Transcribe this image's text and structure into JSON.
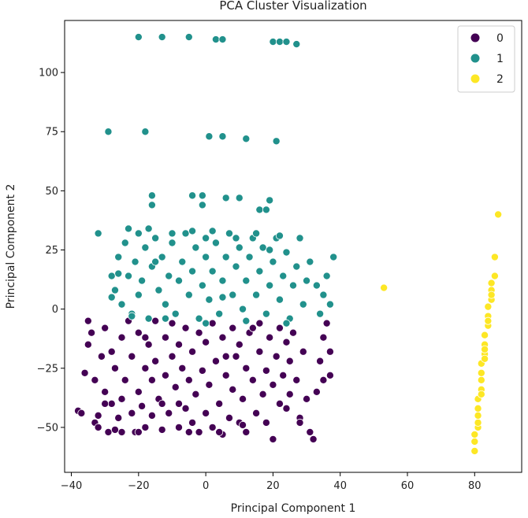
{
  "chart_data": {
    "type": "scatter",
    "title": "PCA Cluster Visualization",
    "xlabel": "Principal Component 1",
    "ylabel": "Principal Component 2",
    "xlim": [
      -42,
      94
    ],
    "ylim": [
      -69,
      122
    ],
    "xticks": [
      -40,
      -20,
      0,
      20,
      40,
      60,
      80
    ],
    "yticks": [
      -50,
      -25,
      0,
      25,
      50,
      75,
      100
    ],
    "xtick_labels": [
      "−40",
      "−20",
      "0",
      "20",
      "40",
      "60",
      "80"
    ],
    "ytick_labels": [
      "−50",
      "−25",
      "0",
      "25",
      "50",
      "75",
      "100"
    ],
    "grid": false,
    "legend_position": "top-right",
    "series": [
      {
        "name": "0",
        "color": "#440154",
        "points": [
          [
            -38,
            -43
          ],
          [
            -37,
            -44
          ],
          [
            -36,
            -27
          ],
          [
            -35,
            -5
          ],
          [
            -35,
            -15
          ],
          [
            -34,
            -10
          ],
          [
            -33,
            -30
          ],
          [
            -33,
            -48
          ],
          [
            -32,
            -50
          ],
          [
            -32,
            -45
          ],
          [
            -31,
            -20
          ],
          [
            -30,
            -35
          ],
          [
            -30,
            -8
          ],
          [
            -29,
            -52
          ],
          [
            -28,
            -18
          ],
          [
            -28,
            -40
          ],
          [
            -27,
            -25
          ],
          [
            -26,
            -46
          ],
          [
            -25,
            -12
          ],
          [
            -25,
            -52
          ],
          [
            -24,
            -30
          ],
          [
            -23,
            -5
          ],
          [
            -22,
            -44
          ],
          [
            -22,
            -20
          ],
          [
            -21,
            -52
          ],
          [
            -20,
            -35
          ],
          [
            -20,
            -10
          ],
          [
            -19,
            -41
          ],
          [
            -18,
            -25
          ],
          [
            -18,
            -50
          ],
          [
            -17,
            -15
          ],
          [
            -16,
            -30
          ],
          [
            -16,
            -45
          ],
          [
            -15,
            -5
          ],
          [
            -15,
            -22
          ],
          [
            -14,
            -38
          ],
          [
            -13,
            -51
          ],
          [
            -12,
            -12
          ],
          [
            -12,
            -28
          ],
          [
            -11,
            -44
          ],
          [
            -10,
            -6
          ],
          [
            -10,
            -20
          ],
          [
            -9,
            -33
          ],
          [
            -8,
            -50
          ],
          [
            -8,
            -15
          ],
          [
            -7,
            -25
          ],
          [
            -6,
            -42
          ],
          [
            -6,
            -8
          ],
          [
            -5,
            -30
          ],
          [
            -4,
            -48
          ],
          [
            -4,
            -18
          ],
          [
            -3,
            -36
          ],
          [
            -2,
            -10
          ],
          [
            -2,
            -52
          ],
          [
            -1,
            -26
          ],
          [
            0,
            -44
          ],
          [
            0,
            -14
          ],
          [
            1,
            -32
          ],
          [
            2,
            -6
          ],
          [
            2,
            -50
          ],
          [
            3,
            -22
          ],
          [
            4,
            -40
          ],
          [
            5,
            -12
          ],
          [
            5,
            -53
          ],
          [
            6,
            -28
          ],
          [
            7,
            -46
          ],
          [
            8,
            -8
          ],
          [
            8,
            -34
          ],
          [
            9,
            -20
          ],
          [
            10,
            -48
          ],
          [
            10,
            -15
          ],
          [
            11,
            -38
          ],
          [
            12,
            -25
          ],
          [
            12,
            -52
          ],
          [
            13,
            -10
          ],
          [
            14,
            -30
          ],
          [
            15,
            -44
          ],
          [
            16,
            -18
          ],
          [
            16,
            -6
          ],
          [
            17,
            -36
          ],
          [
            18,
            -26
          ],
          [
            18,
            -48
          ],
          [
            19,
            -12
          ],
          [
            20,
            -32
          ],
          [
            21,
            -20
          ],
          [
            22,
            -40
          ],
          [
            22,
            -8
          ],
          [
            23,
            -28
          ],
          [
            24,
            -14
          ],
          [
            25,
            -36
          ],
          [
            25,
            -22
          ],
          [
            26,
            -10
          ],
          [
            27,
            -30
          ],
          [
            28,
            -46
          ],
          [
            29,
            -18
          ],
          [
            30,
            -38
          ],
          [
            31,
            -52
          ],
          [
            32,
            -55
          ],
          [
            33,
            -35
          ],
          [
            34,
            -22
          ],
          [
            35,
            -12
          ],
          [
            35,
            -30
          ],
          [
            36,
            -6
          ],
          [
            37,
            -18
          ],
          [
            37,
            -28
          ],
          [
            -27,
            -51
          ],
          [
            -20,
            -52
          ],
          [
            -13,
            -40
          ],
          [
            -5,
            -52
          ],
          [
            4,
            -52
          ],
          [
            11,
            -49
          ],
          [
            20,
            -55
          ],
          [
            28,
            -48
          ],
          [
            -30,
            -40
          ],
          [
            -25,
            -38
          ],
          [
            -18,
            -12
          ],
          [
            -8,
            -40
          ],
          [
            6,
            -20
          ],
          [
            14,
            -8
          ],
          [
            24,
            -42
          ]
        ]
      },
      {
        "name": "1",
        "color": "#21918c",
        "points": [
          [
            -20,
            115
          ],
          [
            -13,
            115
          ],
          [
            -5,
            115
          ],
          [
            3,
            114
          ],
          [
            5,
            114
          ],
          [
            20,
            113
          ],
          [
            22,
            113
          ],
          [
            24,
            113
          ],
          [
            27,
            112
          ],
          [
            -29,
            75
          ],
          [
            -18,
            75
          ],
          [
            1,
            73
          ],
          [
            5,
            73
          ],
          [
            12,
            72
          ],
          [
            21,
            71
          ],
          [
            -16,
            48
          ],
          [
            -16,
            44
          ],
          [
            -4,
            48
          ],
          [
            -1,
            48
          ],
          [
            -1,
            44
          ],
          [
            6,
            47
          ],
          [
            10,
            47
          ],
          [
            16,
            42
          ],
          [
            18,
            42
          ],
          [
            19,
            46
          ],
          [
            -32,
            32
          ],
          [
            -28,
            14
          ],
          [
            -27,
            8
          ],
          [
            -26,
            22
          ],
          [
            -25,
            2
          ],
          [
            -24,
            28
          ],
          [
            -23,
            14
          ],
          [
            -22,
            -2
          ],
          [
            -21,
            20
          ],
          [
            -20,
            32
          ],
          [
            -20,
            6
          ],
          [
            -19,
            12
          ],
          [
            -18,
            26
          ],
          [
            -17,
            -4
          ],
          [
            -16,
            18
          ],
          [
            -15,
            30
          ],
          [
            -14,
            8
          ],
          [
            -13,
            22
          ],
          [
            -12,
            2
          ],
          [
            -11,
            14
          ],
          [
            -10,
            28
          ],
          [
            -9,
            -2
          ],
          [
            -8,
            12
          ],
          [
            -7,
            20
          ],
          [
            -6,
            32
          ],
          [
            -5,
            6
          ],
          [
            -4,
            16
          ],
          [
            -3,
            26
          ],
          [
            -2,
            -4
          ],
          [
            -1,
            10
          ],
          [
            0,
            22
          ],
          [
            0,
            30
          ],
          [
            1,
            4
          ],
          [
            2,
            16
          ],
          [
            3,
            28
          ],
          [
            4,
            -2
          ],
          [
            5,
            12
          ],
          [
            6,
            22
          ],
          [
            7,
            32
          ],
          [
            8,
            6
          ],
          [
            9,
            18
          ],
          [
            10,
            26
          ],
          [
            11,
            0
          ],
          [
            12,
            12
          ],
          [
            13,
            22
          ],
          [
            14,
            30
          ],
          [
            15,
            6
          ],
          [
            16,
            16
          ],
          [
            17,
            26
          ],
          [
            18,
            -2
          ],
          [
            19,
            10
          ],
          [
            20,
            20
          ],
          [
            21,
            30
          ],
          [
            22,
            4
          ],
          [
            23,
            14
          ],
          [
            24,
            24
          ],
          [
            25,
            -4
          ],
          [
            26,
            10
          ],
          [
            27,
            18
          ],
          [
            28,
            30
          ],
          [
            29,
            2
          ],
          [
            30,
            12
          ],
          [
            31,
            20
          ],
          [
            33,
            10
          ],
          [
            34,
            -2
          ],
          [
            35,
            6
          ],
          [
            36,
            14
          ],
          [
            37,
            2
          ],
          [
            38,
            22
          ],
          [
            -26,
            15
          ],
          [
            -23,
            34
          ],
          [
            -17,
            34
          ],
          [
            -10,
            32
          ],
          [
            -4,
            33
          ],
          [
            2,
            33
          ],
          [
            9,
            30
          ],
          [
            15,
            32
          ],
          [
            22,
            31
          ],
          [
            -22,
            -3
          ],
          [
            -12,
            -4
          ],
          [
            0,
            -6
          ],
          [
            12,
            -5
          ],
          [
            24,
            -6
          ],
          [
            -28,
            5
          ],
          [
            -15,
            20
          ],
          [
            5,
            5
          ],
          [
            19,
            25
          ]
        ]
      },
      {
        "name": "2",
        "color": "#fde725",
        "points": [
          [
            80,
            -60
          ],
          [
            80,
            -56
          ],
          [
            80,
            -53
          ],
          [
            81,
            -50
          ],
          [
            81,
            -48
          ],
          [
            81,
            -42
          ],
          [
            81,
            -38
          ],
          [
            82,
            -34
          ],
          [
            82,
            -30
          ],
          [
            82,
            -27
          ],
          [
            82,
            -23
          ],
          [
            83,
            -19
          ],
          [
            83,
            -15
          ],
          [
            83,
            -11
          ],
          [
            84,
            -7
          ],
          [
            84,
            -3
          ],
          [
            84,
            1
          ],
          [
            85,
            4
          ],
          [
            85,
            8
          ],
          [
            85,
            11
          ],
          [
            86,
            14
          ],
          [
            86,
            22
          ],
          [
            87,
            40
          ],
          [
            53,
            9
          ],
          [
            81,
            -45
          ],
          [
            82,
            -36
          ],
          [
            83,
            -21
          ],
          [
            84,
            -5
          ],
          [
            85,
            6
          ],
          [
            83,
            -17
          ]
        ]
      }
    ]
  }
}
